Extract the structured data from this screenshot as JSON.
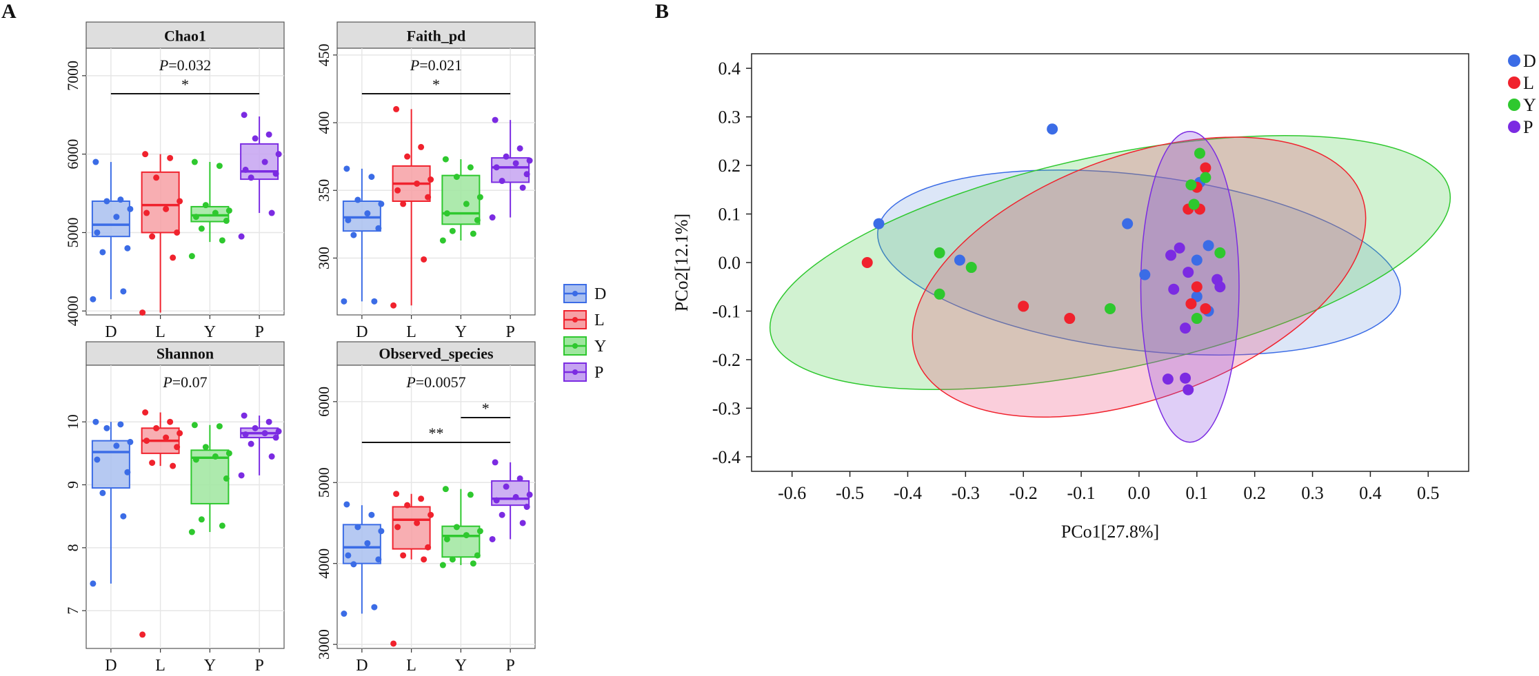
{
  "panel_labels": {
    "left": "A",
    "right": "B"
  },
  "colors": {
    "D": "#3b6ce6",
    "L": "#f0222d",
    "Y": "#2ec82e",
    "P": "#7b2be2"
  },
  "chart_data": [
    {
      "type": "box",
      "title": "Chao1",
      "categories": [
        "D",
        "L",
        "Y",
        "P"
      ],
      "ylim": [
        3950,
        7350
      ],
      "yticks": [
        4000,
        5000,
        6000,
        7000
      ],
      "p_value": "=0.032",
      "significance": [
        {
          "from": "D",
          "to": "P",
          "label": "*"
        }
      ],
      "boxes": [
        {
          "group": "D",
          "min": 4150,
          "q1": 4950,
          "median": 5100,
          "q3": 5400,
          "max": 5900
        },
        {
          "group": "L",
          "min": 3980,
          "q1": 5000,
          "median": 5350,
          "q3": 5770,
          "max": 6000
        },
        {
          "group": "Y",
          "min": 4880,
          "q1": 5140,
          "median": 5220,
          "q3": 5330,
          "max": 5900
        },
        {
          "group": "P",
          "min": 5250,
          "q1": 5680,
          "median": 5780,
          "q3": 6130,
          "max": 6480
        }
      ],
      "points": {
        "D": [
          4150,
          4250,
          4750,
          4800,
          5000,
          5200,
          5300,
          5400,
          5420,
          5900
        ],
        "L": [
          3980,
          4680,
          4950,
          5000,
          5250,
          5300,
          5400,
          5700,
          5950,
          6000
        ],
        "Y": [
          4700,
          4900,
          5050,
          5150,
          5200,
          5250,
          5280,
          5350,
          5850,
          5900
        ],
        "P": [
          4950,
          5250,
          5700,
          5750,
          5800,
          5900,
          6000,
          6200,
          6250,
          6500
        ]
      }
    },
    {
      "type": "box",
      "title": "Faith_pd",
      "categories": [
        "D",
        "L",
        "Y",
        "P"
      ],
      "ylim": [
        258,
        455
      ],
      "yticks": [
        300,
        350,
        400,
        450
      ],
      "p_value": "=0.021",
      "significance": [
        {
          "from": "D",
          "to": "P",
          "label": "*"
        }
      ],
      "boxes": [
        {
          "group": "D",
          "min": 268,
          "q1": 320,
          "median": 330,
          "q3": 342,
          "max": 366
        },
        {
          "group": "L",
          "min": 265,
          "q1": 342,
          "median": 355,
          "q3": 368,
          "max": 410
        },
        {
          "group": "Y",
          "min": 313,
          "q1": 325,
          "median": 333,
          "q3": 361,
          "max": 373
        },
        {
          "group": "P",
          "min": 330,
          "q1": 356,
          "median": 367,
          "q3": 374,
          "max": 402
        }
      ],
      "points": {
        "D": [
          268,
          268,
          317,
          322,
          328,
          333,
          340,
          343,
          360,
          366
        ],
        "L": [
          265,
          299,
          340,
          345,
          350,
          355,
          358,
          375,
          382,
          410
        ],
        "Y": [
          313,
          318,
          320,
          328,
          333,
          340,
          345,
          360,
          367,
          373
        ],
        "P": [
          330,
          352,
          357,
          362,
          367,
          370,
          372,
          375,
          381,
          402
        ]
      }
    },
    {
      "type": "box",
      "title": "Shannon",
      "categories": [
        "D",
        "L",
        "Y",
        "P"
      ],
      "ylim": [
        6.4,
        10.9
      ],
      "yticks": [
        7,
        8,
        9,
        10
      ],
      "p_value": "=0.07",
      "significance": [],
      "boxes": [
        {
          "group": "D",
          "min": 7.43,
          "q1": 8.95,
          "median": 9.52,
          "q3": 9.7,
          "max": 10.0
        },
        {
          "group": "L",
          "min": 9.3,
          "q1": 9.5,
          "median": 9.7,
          "q3": 9.9,
          "max": 10.15
        },
        {
          "group": "Y",
          "min": 8.25,
          "q1": 8.7,
          "median": 9.43,
          "q3": 9.55,
          "max": 9.95
        },
        {
          "group": "P",
          "min": 9.15,
          "q1": 9.75,
          "median": 9.82,
          "q3": 9.9,
          "max": 10.1
        }
      ],
      "points": {
        "D": [
          7.43,
          8.5,
          8.87,
          9.2,
          9.4,
          9.62,
          9.68,
          9.9,
          9.96,
          10.0
        ],
        "L": [
          6.62,
          9.3,
          9.35,
          9.6,
          9.7,
          9.75,
          9.82,
          9.9,
          10.0,
          10.15
        ],
        "Y": [
          8.25,
          8.35,
          8.45,
          9.1,
          9.4,
          9.45,
          9.5,
          9.6,
          9.93,
          9.95
        ],
        "P": [
          9.15,
          9.45,
          9.65,
          9.75,
          9.8,
          9.82,
          9.85,
          9.9,
          10.0,
          10.1
        ]
      }
    },
    {
      "type": "box",
      "title": "Observed_species",
      "categories": [
        "D",
        "L",
        "Y",
        "P"
      ],
      "ylim": [
        2950,
        6450
      ],
      "yticks": [
        3000,
        4000,
        5000,
        6000
      ],
      "p_value": "=0.0057",
      "significance": [
        {
          "from": "D",
          "to": "P",
          "label": "**"
        },
        {
          "from": "Y",
          "to": "P",
          "label": "*"
        }
      ],
      "boxes": [
        {
          "group": "D",
          "min": 3380,
          "q1": 4000,
          "median": 4200,
          "q3": 4480,
          "max": 4720
        },
        {
          "group": "L",
          "min": 4050,
          "q1": 4180,
          "median": 4540,
          "q3": 4700,
          "max": 4860
        },
        {
          "group": "Y",
          "min": 3980,
          "q1": 4080,
          "median": 4340,
          "q3": 4460,
          "max": 4920
        },
        {
          "group": "P",
          "min": 4300,
          "q1": 4720,
          "median": 4800,
          "q3": 5020,
          "max": 5250
        }
      ],
      "points": {
        "D": [
          3380,
          3460,
          3990,
          4050,
          4100,
          4250,
          4400,
          4450,
          4600,
          4730
        ],
        "L": [
          3010,
          4050,
          4100,
          4200,
          4450,
          4500,
          4600,
          4720,
          4800,
          4860
        ],
        "Y": [
          3980,
          4000,
          4050,
          4100,
          4300,
          4350,
          4400,
          4450,
          4850,
          4920
        ],
        "P": [
          4300,
          4500,
          4600,
          4700,
          4780,
          4820,
          4850,
          4950,
          5050,
          5250
        ]
      }
    },
    {
      "type": "scatter",
      "xlabel": "PCo1[27.8%]",
      "ylabel": "PCo2[12.1%]",
      "xlim": [
        -0.67,
        0.57
      ],
      "ylim": [
        -0.43,
        0.43
      ],
      "xticks": [
        -0.6,
        -0.5,
        -0.4,
        -0.3,
        -0.2,
        -0.1,
        0.0,
        0.1,
        0.2,
        0.3,
        0.4,
        0.5
      ],
      "yticks": [
        0.4,
        0.3,
        0.2,
        0.1,
        0.0,
        -0.1,
        -0.2,
        -0.3,
        -0.4
      ],
      "legend_position": "right",
      "series": [
        {
          "name": "D",
          "points": [
            [
              -0.45,
              0.08
            ],
            [
              -0.15,
              0.275
            ],
            [
              -0.31,
              0.005
            ],
            [
              -0.02,
              0.08
            ],
            [
              0.01,
              -0.025
            ],
            [
              0.105,
              0.165
            ],
            [
              0.12,
              0.035
            ],
            [
              0.1,
              0.005
            ],
            [
              0.1,
              -0.07
            ],
            [
              0.12,
              -0.1
            ]
          ]
        },
        {
          "name": "L",
          "points": [
            [
              -0.47,
              0.0
            ],
            [
              -0.2,
              -0.09
            ],
            [
              -0.12,
              -0.115
            ],
            [
              0.085,
              0.11
            ],
            [
              0.105,
              0.11
            ],
            [
              0.115,
              0.195
            ],
            [
              0.1,
              0.155
            ],
            [
              0.1,
              -0.05
            ],
            [
              0.09,
              -0.085
            ],
            [
              0.115,
              -0.095
            ]
          ]
        },
        {
          "name": "Y",
          "points": [
            [
              -0.345,
              0.02
            ],
            [
              -0.29,
              -0.01
            ],
            [
              -0.345,
              -0.065
            ],
            [
              -0.05,
              -0.095
            ],
            [
              0.105,
              0.225
            ],
            [
              0.09,
              0.16
            ],
            [
              0.115,
              0.175
            ],
            [
              0.095,
              0.12
            ],
            [
              0.14,
              0.02
            ],
            [
              0.1,
              -0.115
            ]
          ]
        },
        {
          "name": "P",
          "points": [
            [
              0.055,
              0.015
            ],
            [
              0.07,
              0.03
            ],
            [
              0.06,
              -0.055
            ],
            [
              0.085,
              -0.02
            ],
            [
              0.08,
              -0.135
            ],
            [
              0.135,
              -0.035
            ],
            [
              0.14,
              -0.05
            ],
            [
              0.05,
              -0.24
            ],
            [
              0.08,
              -0.238
            ],
            [
              0.085,
              -0.262
            ]
          ]
        }
      ],
      "ellipses": [
        {
          "group": "D",
          "cx": 0.0,
          "cy": 0.0,
          "rx": 0.455,
          "ry": 0.18,
          "angle": -7
        },
        {
          "group": "Y",
          "cx": -0.05,
          "cy": 0.0,
          "rx": 0.6,
          "ry": 0.22,
          "angle": 12
        },
        {
          "group": "L",
          "cx": 0.0,
          "cy": -0.03,
          "rx": 0.41,
          "ry": 0.25,
          "angle": 20
        },
        {
          "group": "P",
          "cx": 0.088,
          "cy": -0.05,
          "rx": 0.085,
          "ry": 0.32,
          "angle": 0
        }
      ]
    }
  ]
}
